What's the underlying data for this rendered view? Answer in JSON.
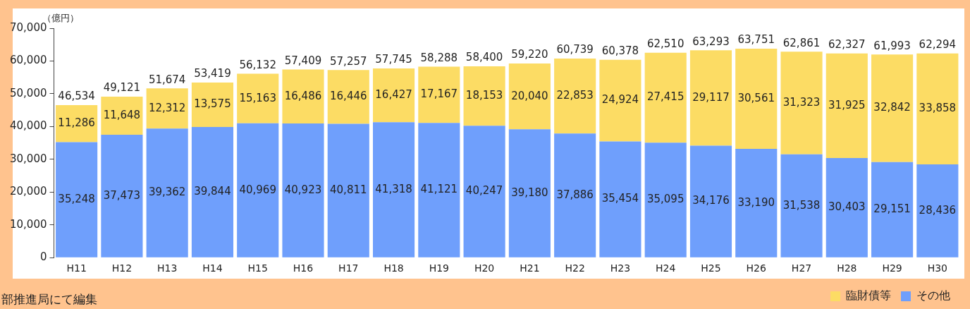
{
  "chart_data": {
    "type": "bar",
    "stacked": true,
    "ylabel": "（億円）",
    "categories": [
      "H11",
      "H12",
      "H13",
      "H14",
      "H15",
      "H16",
      "H17",
      "H18",
      "H19",
      "H20",
      "H21",
      "H22",
      "H23",
      "H24",
      "H25",
      "H26",
      "H27",
      "H28",
      "H29",
      "H30"
    ],
    "series": [
      {
        "name": "その他",
        "color": "#6f9ffc",
        "values": [
          35248,
          37473,
          39362,
          39844,
          40969,
          40923,
          40811,
          41318,
          41121,
          40247,
          39180,
          37886,
          35454,
          35095,
          34176,
          33190,
          31538,
          30403,
          29151,
          28436
        ],
        "value_labels": [
          "35,248",
          "37,473",
          "39,362",
          "39,844",
          "40,969",
          "40,923",
          "40,811",
          "41,318",
          "41,121",
          "40,247",
          "39,180",
          "37,886",
          "35,454",
          "35,095",
          "34,176",
          "33,190",
          "31,538",
          "30,403",
          "29,151",
          "28,436"
        ]
      },
      {
        "name": "臨財債等",
        "color": "#fcdc64",
        "values": [
          11286,
          11648,
          12312,
          13575,
          15163,
          16486,
          16446,
          16427,
          17167,
          18153,
          20040,
          22853,
          24924,
          27415,
          29117,
          30561,
          31323,
          31925,
          32842,
          33858
        ],
        "value_labels": [
          "11,286",
          "11,648",
          "12,312",
          "13,575",
          "15,163",
          "16,486",
          "16,446",
          "16,427",
          "17,167",
          "18,153",
          "20,040",
          "22,853",
          "24,924",
          "27,415",
          "29,117",
          "30,561",
          "31,323",
          "31,925",
          "32,842",
          "33,858"
        ]
      }
    ],
    "totals": [
      "46,534",
      "49,121",
      "51,674",
      "53,419",
      "56,132",
      "57,409",
      "57,257",
      "57,745",
      "58,288",
      "58,400",
      "59,220",
      "60,739",
      "60,378",
      "62,510",
      "63,293",
      "63,751",
      "62,861",
      "62,327",
      "61,993",
      "62,294"
    ],
    "ylim": [
      0,
      70000
    ],
    "yticks": [
      {
        "value": 0,
        "label": "0"
      },
      {
        "value": 10000,
        "label": "10,000"
      },
      {
        "value": 20000,
        "label": "20,000"
      },
      {
        "value": 30000,
        "label": "30,000"
      },
      {
        "value": 40000,
        "label": "40,000"
      },
      {
        "value": 50000,
        "label": "50,000"
      },
      {
        "value": 60000,
        "label": "60,000"
      },
      {
        "value": 70000,
        "label": "70,000"
      }
    ],
    "grid": false,
    "legend": "bottom right",
    "annotations": [
      "部推進局にて編集"
    ]
  }
}
